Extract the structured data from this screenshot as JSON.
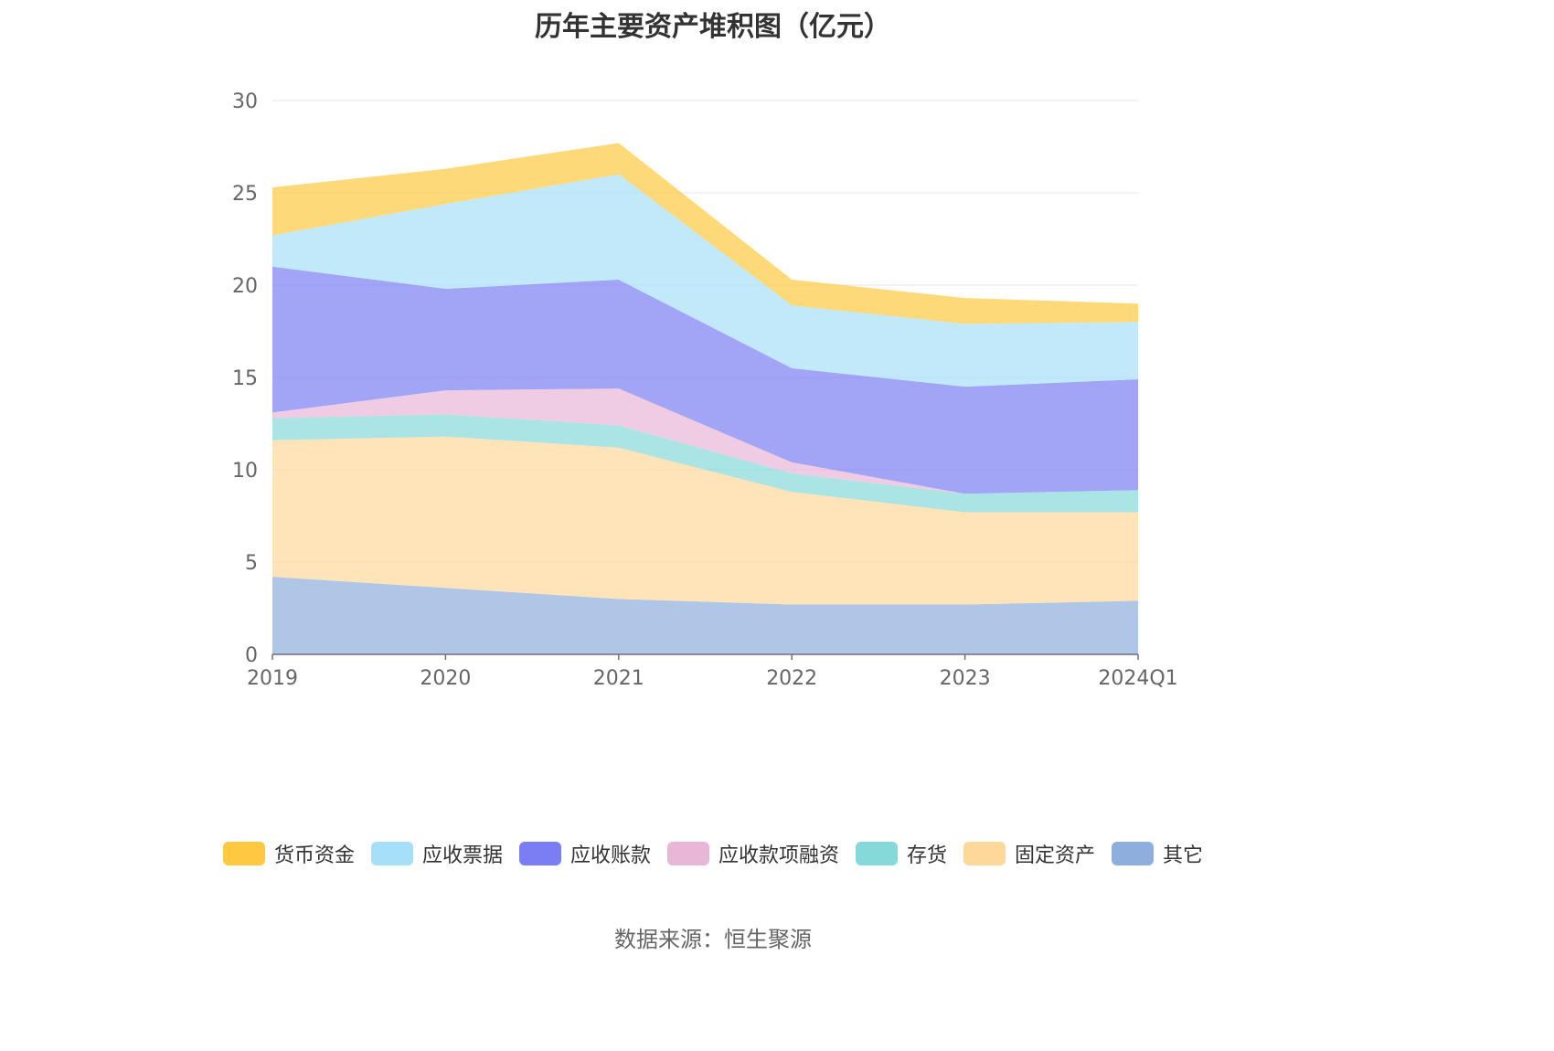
{
  "chart_data": {
    "type": "area",
    "stacked": true,
    "title": "历年主要资产堆积图（亿元）",
    "categories": [
      "2019",
      "2020",
      "2021",
      "2022",
      "2023",
      "2024Q1"
    ],
    "ylim": [
      0,
      30
    ],
    "yticks": [
      0,
      5,
      10,
      15,
      20,
      25,
      30
    ],
    "grid": true,
    "legend_position": "bottom",
    "series": [
      {
        "name": "其它",
        "color": "#8eaedd",
        "values": [
          4.2,
          3.6,
          3.0,
          2.7,
          2.7,
          2.9
        ]
      },
      {
        "name": "固定资产",
        "color": "#fdd89a",
        "values": [
          7.4,
          8.2,
          8.2,
          6.1,
          5.0,
          4.8
        ]
      },
      {
        "name": "存货",
        "color": "#86d9d9",
        "values": [
          1.2,
          1.2,
          1.2,
          1.0,
          1.0,
          1.2
        ]
      },
      {
        "name": "应收款项融资",
        "color": "#e8b7d8",
        "values": [
          0.3,
          1.3,
          2.0,
          0.6,
          0.0,
          0.0
        ]
      },
      {
        "name": "应收账款",
        "color": "#7b7ef2",
        "values": [
          7.9,
          5.5,
          5.9,
          5.1,
          5.8,
          6.0
        ]
      },
      {
        "name": "应收票据",
        "color": "#a6dff8",
        "values": [
          1.7,
          4.6,
          5.7,
          3.4,
          3.4,
          3.1
        ]
      },
      {
        "name": "货币资金",
        "color": "#fec940",
        "values": [
          2.6,
          1.9,
          1.7,
          1.4,
          1.4,
          1.0
        ]
      }
    ],
    "legend_order": [
      "货币资金",
      "应收票据",
      "应收账款",
      "应收款项融资",
      "存货",
      "固定资产",
      "其它"
    ]
  },
  "source": "数据来源：恒生聚源"
}
